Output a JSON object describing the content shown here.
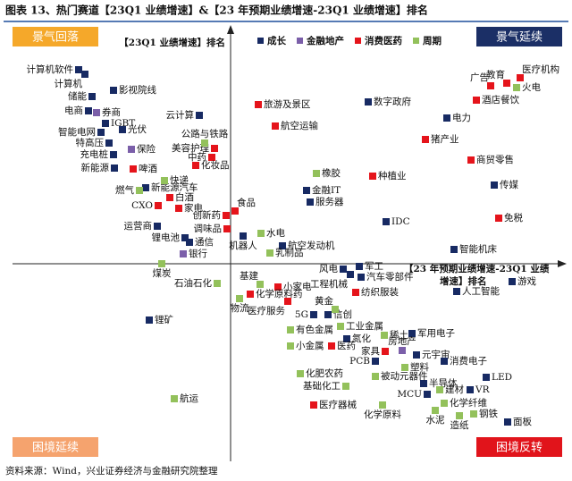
{
  "title": "图表 13、热门赛道【23Q1 业绩增速】&【23 年预期业绩增速-23Q1 业绩增速】排名",
  "source": "资料来源：Wind，兴业证券经济与金融研究院整理",
  "chart_data": {
    "type": "scatter",
    "y_label": "【23Q1 业绩增速】排名",
    "x_label": [
      "【23 年预期业绩增速-23Q1 业绩",
      "增速】排名"
    ],
    "quadrants": {
      "top_left": "景气回落",
      "top_right": "景气延续",
      "bottom_left": "困境延续",
      "bottom_right": "困境反转"
    },
    "xlim": [
      -245,
      375
    ],
    "ylim": [
      -225,
      265
    ],
    "series": [
      {
        "name": "成长",
        "color": "#172a63",
        "labels": [
          "计算机软件",
          "计算机",
          "储能",
          "影视院线",
          "电商",
          "IGBT",
          "光伏",
          "智能电网",
          "特高压",
          "充电桩",
          "新能源",
          "云计算",
          "新能源汽车",
          "运营商",
          "锂电池",
          "通信",
          "锂矿",
          "机器人",
          "航空发动机",
          "金融IT",
          "服务器",
          "数字政府",
          "电力",
          "IDC",
          "传媒",
          "智能机床",
          "风电",
          "军工",
          "工程机械",
          "汽车零部件",
          "人工智能",
          "游戏",
          "5G",
          "信创",
          "氮化",
          "军用电子",
          "元宇宙",
          "消费电子",
          "PCB",
          "半导体",
          "LED",
          "VR",
          "MCU",
          "面板"
        ],
        "x": [
          -170,
          -163,
          -155,
          -131,
          -159,
          -140,
          -121,
          -145,
          -136,
          -131,
          -130,
          -35,
          -95,
          -82,
          -51,
          -46,
          -91,
          14,
          58,
          85,
          89,
          154,
          242,
          174,
          295,
          250,
          126,
          144,
          134,
          146,
          253,
          315,
          93,
          109,
          130,
          203,
          208,
          239,
          162,
          216,
          286,
          268,
          220,
          310
        ],
        "values": [
          217,
          212,
          187,
          194,
          171,
          157,
          150,
          147,
          135,
          122,
          107,
          166,
          85,
          42,
          29,
          24,
          -63,
          31,
          20,
          82,
          69,
          181,
          163,
          47,
          88,
          16,
          -6,
          -3,
          -12,
          -15,
          -31,
          -20,
          -57,
          -57,
          -84,
          -78,
          -102,
          -109,
          -109,
          -134,
          -127,
          -141,
          -146,
          -177
        ],
        "label_sides": [
          "left",
          "bl",
          "left",
          "right",
          "left",
          "right",
          "right",
          "left",
          "left",
          "left",
          "left",
          "left",
          "right",
          "left",
          "left",
          "right",
          "right",
          "bottom",
          "right",
          "right",
          "right",
          "right",
          "right",
          "right",
          "right",
          "right",
          "left",
          "right",
          "bl",
          "right",
          "right",
          "right",
          "left",
          "right",
          "right",
          "right",
          "right",
          "right",
          "left",
          "right",
          "right",
          "right",
          "left",
          "right"
        ]
      },
      {
        "name": "金融地产",
        "color": "#7b5fa9",
        "labels": [
          "券商",
          "保险",
          "银行",
          "房地产"
        ],
        "x": [
          -150,
          -111,
          -53,
          192
        ],
        "values": [
          169,
          128,
          11,
          -97
        ],
        "label_sides": [
          "right",
          "right",
          "right",
          "top"
        ]
      },
      {
        "name": "消费医药",
        "color": "#e5141b",
        "labels": [
          "医疗机构",
          "教育",
          "广告",
          "酒店餐饮",
          "旅游及景区",
          "航空运输",
          "猪产业",
          "商贸零售",
          "种植业",
          "免税",
          "美容护理",
          "中药",
          "化妆品",
          "啤酒",
          "白酒",
          "CXO",
          "家电",
          "创新药",
          "食品",
          "调味品",
          "小家电",
          "化学原料药",
          "医疗服务",
          "纺织服装",
          "医药",
          "家具",
          "医疗器械"
        ],
        "x": [
          324,
          309,
          291,
          275,
          31,
          50,
          218,
          269,
          159,
          300,
          -18,
          -21,
          -39,
          -109,
          -68,
          -81,
          -58,
          -5,
          5,
          -4,
          53,
          22,
          64,
          140,
          113,
          173,
          93
        ],
        "values": [
          208,
          202,
          199,
          183,
          178,
          154,
          139,
          116,
          98,
          51,
          129,
          119,
          110,
          106,
          74,
          65,
          62,
          54,
          59,
          39,
          -26,
          -34,
          -42,
          -32,
          -92,
          -98,
          -158
        ],
        "label_sides": [
          "tr",
          "tl",
          "tl",
          "right",
          "right",
          "right",
          "right",
          "right",
          "right",
          "right",
          "left",
          "left",
          "right",
          "right",
          "right",
          "left",
          "right",
          "left",
          "tr",
          "left",
          "right",
          "right",
          "bl",
          "right",
          "right",
          "left",
          "right"
        ]
      },
      {
        "name": "周期",
        "color": "#93c15b",
        "labels": [
          "火电",
          "公路与铁路",
          "快递",
          "燃气",
          "橡胶",
          "水电",
          "乳制品",
          "煤炭",
          "石油石化",
          "基建",
          "物流",
          "黄金",
          "工业金属",
          "有色金属",
          "稀土",
          "小金属",
          "塑料",
          "化肥农药",
          "被动元器件",
          "基础化工",
          "建材",
          "化学纤维",
          "化学原料",
          "航运",
          "水泥",
          "造纸",
          "钢铁"
        ],
        "x": [
          320,
          -29,
          -74,
          -102,
          96,
          34,
          44,
          -77,
          -15,
          33,
          10,
          117,
          123,
          67,
          172,
          67,
          195,
          78,
          162,
          129,
          234,
          239,
          170,
          -63,
          229,
          256,
          272
        ],
        "values": [
          197,
          135,
          93,
          82,
          101,
          34,
          12,
          0,
          -22,
          -23,
          -39,
          -51,
          -70,
          -74,
          -80,
          -92,
          -116,
          -123,
          -126,
          -137,
          -141,
          -156,
          -158,
          -151,
          -164,
          -170,
          -168
        ],
        "label_sides": [
          "right",
          "top",
          "right",
          "left",
          "right",
          "right",
          "right",
          "bottom",
          "left",
          "tl",
          "bottom",
          "tl",
          "right",
          "right",
          "right",
          "right",
          "right",
          "right",
          "right",
          "left",
          "right",
          "right",
          "bottom",
          "right",
          "bottom",
          "bottom",
          "right"
        ]
      }
    ]
  }
}
